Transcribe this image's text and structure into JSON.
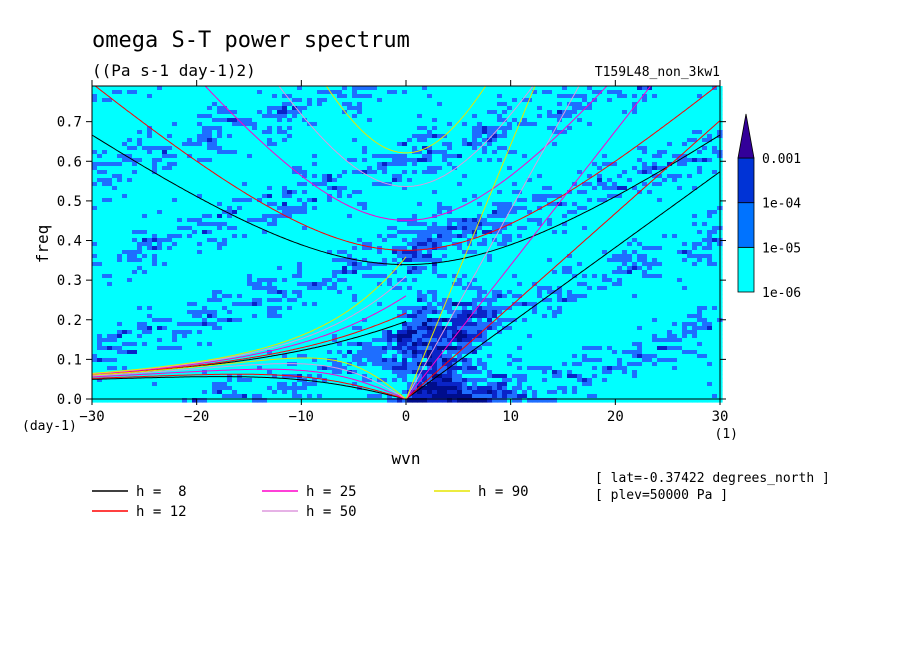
{
  "chart_data": {
    "type": "heatmap",
    "title": "omega S-T power spectrum",
    "units": "((Pa s-1 day-1)2)",
    "run_label": "T159L48_non_3kw1",
    "xlabel": "wvn",
    "ylabel": "freq",
    "x_unit": "(1)",
    "y_unit": "(day-1)",
    "xlim": [
      -30,
      30
    ],
    "ylim": [
      0,
      0.79
    ],
    "x_ticks": [
      "-30",
      "-20",
      "-10",
      "0",
      "10",
      "20",
      "30"
    ],
    "y_ticks": [
      "0.0",
      "0.1",
      "0.2",
      "0.3",
      "0.4",
      "0.5",
      "0.6",
      "0.7"
    ],
    "colorbar": {
      "levels": [
        "1e-06",
        "1e-05",
        "1e-04",
        "0.001"
      ],
      "colors": [
        "#00ffff",
        "#0073ff",
        "#0033d6",
        "#000099",
        "#330099"
      ]
    },
    "fill_colors": {
      "white": "#ffffff",
      "cyan": "#00ffff",
      "blue": "#1e6eff",
      "dark_blue": "#0a24c8",
      "navy": "#000d8c"
    },
    "dispersion_curves": [
      {
        "name": "h =  8",
        "h": 8,
        "color": "#000000"
      },
      {
        "name": "h = 12",
        "h": 12,
        "color": "#ff0000"
      },
      {
        "name": "h = 25",
        "h": 25,
        "color": "#ff00cc"
      },
      {
        "name": "h = 50",
        "h": 50,
        "color": "#dd99dd"
      },
      {
        "name": "h = 90",
        "h": 90,
        "color": "#e6e600"
      }
    ],
    "annotations": [
      "[ lat=-0.37422 degrees_north ]",
      "[ plev=50000 Pa ]"
    ]
  }
}
